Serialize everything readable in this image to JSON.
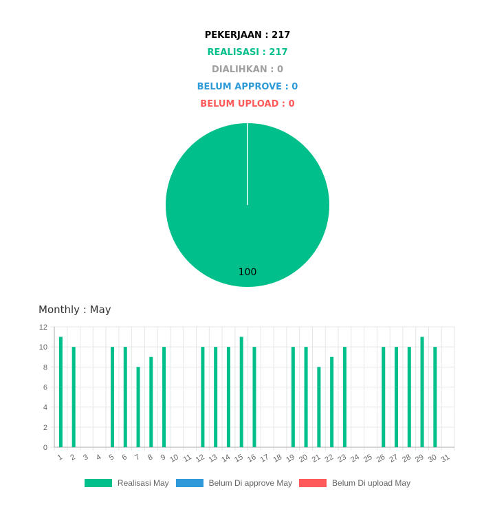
{
  "summary": {
    "pekerjaan": "PEKERJAAN : 217",
    "realisasi": "REALISASI : 217",
    "dialihkan": "DIALIHKAN : 0",
    "belum_approve": "BELUM APPROVE : 0",
    "belum_upload": "BELUM UPLOAD : 0"
  },
  "colors": {
    "pekerjaan": "#000000",
    "realisasi": "#00bf8a",
    "dialihkan": "#a0a0a0",
    "belum_approve": "#2e9ad8",
    "belum_upload": "#ff5a5a",
    "grid": "#e6e6e6",
    "axis": "#666666"
  },
  "pie": {
    "label": "100"
  },
  "monthly": {
    "title": "Monthly : May"
  },
  "chart_data": [
    {
      "type": "pie",
      "categories": [
        "Realisasi",
        "Dialihkan",
        "Belum Approve",
        "Belum Upload"
      ],
      "values": [
        100,
        0,
        0,
        0
      ],
      "data_labels": [
        "100"
      ]
    },
    {
      "type": "bar",
      "categories": [
        "1",
        "2",
        "3",
        "4",
        "5",
        "6",
        "7",
        "8",
        "9",
        "10",
        "11",
        "12",
        "13",
        "14",
        "15",
        "16",
        "17",
        "18",
        "19",
        "20",
        "21",
        "22",
        "23",
        "24",
        "25",
        "26",
        "27",
        "28",
        "29",
        "30",
        "31"
      ],
      "series": [
        {
          "name": "Realisasi May",
          "color": "#00bf8a",
          "values": [
            11,
            10,
            0,
            0,
            10,
            10,
            8,
            9,
            10,
            0,
            0,
            10,
            10,
            10,
            11,
            10,
            0,
            0,
            10,
            10,
            8,
            9,
            10,
            0,
            0,
            10,
            10,
            10,
            11,
            10,
            0
          ]
        },
        {
          "name": "Belum Di approve May",
          "color": "#2e9ad8",
          "values": [
            0,
            0,
            0,
            0,
            0,
            0,
            0,
            0,
            0,
            0,
            0,
            0,
            0,
            0,
            0,
            0,
            0,
            0,
            0,
            0,
            0,
            0,
            0,
            0,
            0,
            0,
            0,
            0,
            0,
            0,
            0
          ]
        },
        {
          "name": "Belum Di upload May",
          "color": "#ff5a5a",
          "values": [
            0,
            0,
            0,
            0,
            0,
            0,
            0,
            0,
            0,
            0,
            0,
            0,
            0,
            0,
            0,
            0,
            0,
            0,
            0,
            0,
            0,
            0,
            0,
            0,
            0,
            0,
            0,
            0,
            0,
            0,
            0
          ]
        }
      ],
      "yticks": [
        "0",
        "2",
        "4",
        "6",
        "8",
        "10",
        "12"
      ],
      "ylim": [
        0,
        12
      ],
      "grid": true,
      "legend": "bottom"
    }
  ]
}
